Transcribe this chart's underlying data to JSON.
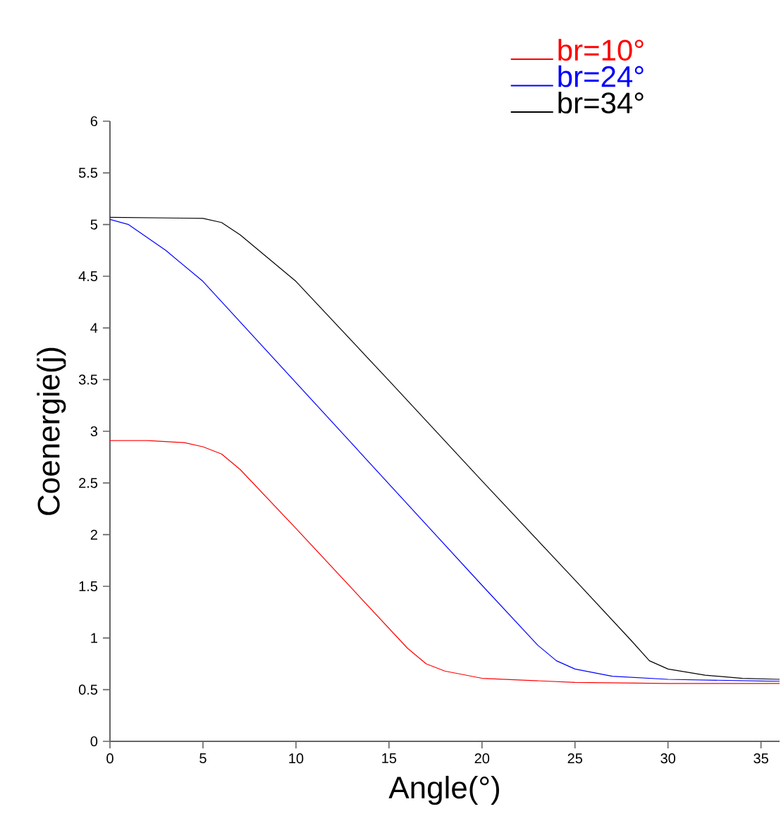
{
  "chart_data": {
    "type": "line",
    "xlabel": "Angle(°)",
    "ylabel": "Coenergie(j)",
    "xlim": [
      0,
      36
    ],
    "ylim": [
      0,
      6
    ],
    "xticks": [
      0,
      5,
      10,
      15,
      20,
      25,
      30,
      35
    ],
    "yticks": [
      0,
      0.5,
      1,
      1.5,
      2,
      2.5,
      3,
      3.5,
      4,
      4.5,
      5,
      5.5,
      6
    ],
    "grid": false,
    "legend": "top right",
    "marker": "none",
    "line_style": "solid",
    "series": [
      {
        "name": "br=10°",
        "color": "#ff0000",
        "x": [
          0,
          2,
          4,
          5,
          6,
          7,
          10,
          13,
          16,
          17,
          18,
          20,
          25,
          30,
          36
        ],
        "values": [
          2.91,
          2.91,
          2.89,
          2.85,
          2.78,
          2.63,
          2.06,
          1.48,
          0.9,
          0.75,
          0.68,
          0.61,
          0.57,
          0.56,
          0.56
        ]
      },
      {
        "name": "br=24°",
        "color": "#0000ff",
        "x": [
          0,
          1,
          3,
          5,
          10,
          15,
          20,
          23,
          24,
          25,
          27,
          30,
          36
        ],
        "values": [
          5.05,
          5.0,
          4.75,
          4.45,
          3.47,
          2.49,
          1.51,
          0.93,
          0.78,
          0.7,
          0.63,
          0.6,
          0.58
        ]
      },
      {
        "name": "br=34°",
        "color": "#000000",
        "x": [
          0,
          5,
          6,
          7,
          8,
          10,
          15,
          20,
          25,
          28,
          29,
          30,
          32,
          34,
          36
        ],
        "values": [
          5.07,
          5.06,
          5.02,
          4.9,
          4.75,
          4.45,
          3.49,
          2.52,
          1.56,
          0.98,
          0.78,
          0.7,
          0.64,
          0.61,
          0.6
        ]
      }
    ]
  }
}
